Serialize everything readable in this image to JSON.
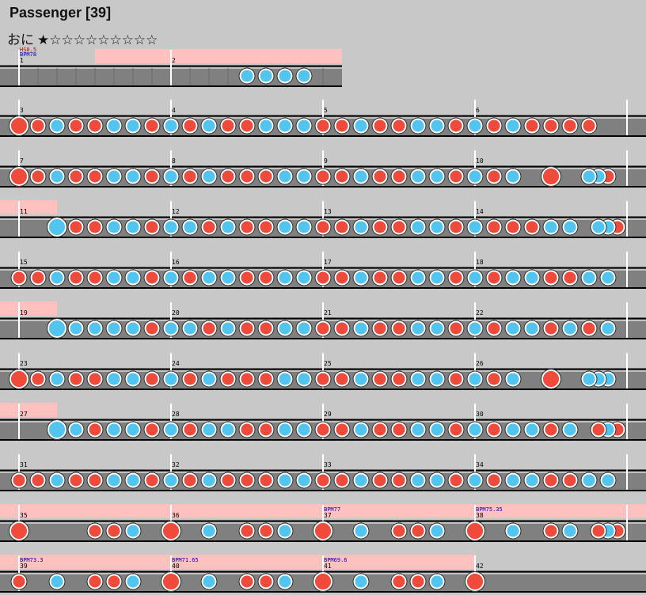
{
  "header": {
    "title": "Passenger [39]",
    "difficulty": "おに",
    "stars": "★☆☆☆☆☆☆☆☆☆"
  },
  "rows": [
    {
      "measures": [
        {
          "number": "1",
          "events": [
            "HS0.5",
            "BPM78"
          ]
        },
        {
          "number": "2"
        }
      ]
    },
    {
      "measures": [
        {
          "number": "3"
        },
        {
          "number": "4"
        },
        {
          "number": "5"
        },
        {
          "number": "6"
        }
      ]
    },
    {
      "measures": [
        {
          "number": "7"
        },
        {
          "number": "8"
        },
        {
          "number": "9"
        },
        {
          "number": "10"
        }
      ]
    },
    {
      "measures": [
        {
          "number": "11"
        },
        {
          "number": "12"
        },
        {
          "number": "13"
        },
        {
          "number": "14"
        }
      ]
    },
    {
      "measures": [
        {
          "number": "15"
        },
        {
          "number": "16"
        },
        {
          "number": "17"
        },
        {
          "number": "18"
        }
      ]
    },
    {
      "measures": [
        {
          "number": "19"
        },
        {
          "number": "20"
        },
        {
          "number": "21"
        },
        {
          "number": "22"
        }
      ]
    },
    {
      "measures": [
        {
          "number": "23"
        },
        {
          "number": "24"
        },
        {
          "number": "25"
        },
        {
          "number": "26"
        }
      ]
    },
    {
      "measures": [
        {
          "number": "27"
        },
        {
          "number": "28"
        },
        {
          "number": "29"
        },
        {
          "number": "30"
        }
      ]
    },
    {
      "measures": [
        {
          "number": "31"
        },
        {
          "number": "32"
        },
        {
          "number": "33"
        },
        {
          "number": "34"
        }
      ]
    },
    {
      "measures": [
        {
          "number": "35"
        },
        {
          "number": "36"
        },
        {
          "number": "37",
          "events": [
            "BPM77"
          ]
        },
        {
          "number": "38",
          "events": [
            "BPM75.35"
          ]
        }
      ]
    },
    {
      "measures": [
        {
          "number": "39",
          "events": [
            "BPM73.3"
          ]
        },
        {
          "number": "40",
          "events": [
            "BPM71.65"
          ]
        },
        {
          "number": "41",
          "events": [
            "BPM69.6"
          ]
        },
        {
          "number": "42"
        }
      ]
    }
  ]
}
